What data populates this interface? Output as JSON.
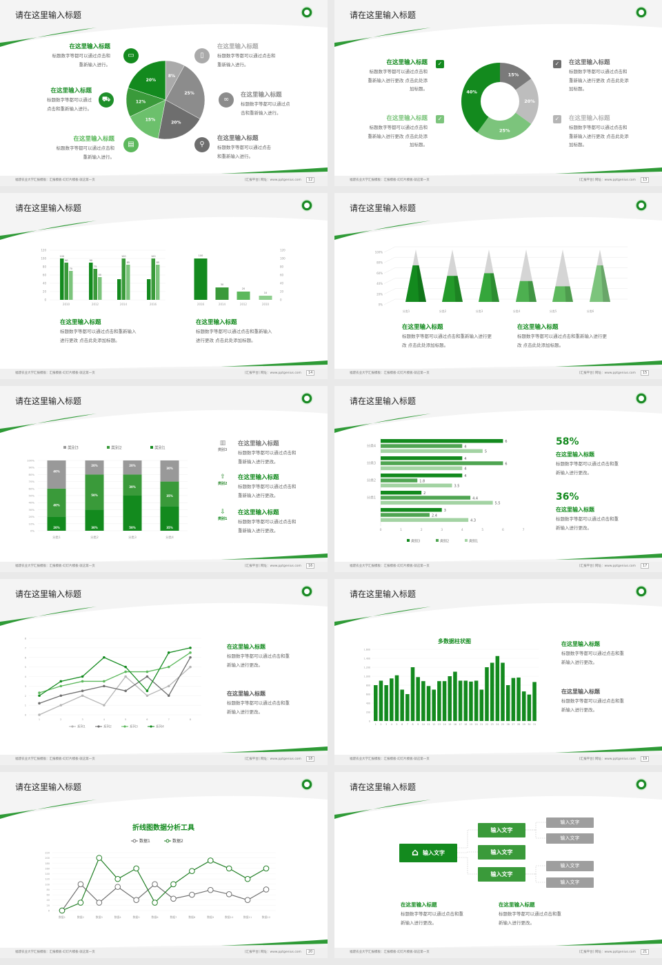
{
  "common": {
    "slide_title": "请在这里输入标题",
    "item_title": "在这里输入标题",
    "footer_left": "福建农业大学汇报模板：汇报模板-幻灯片模板-就这第一页",
    "footer_right": "[汇报平台]  网址：www.pptgenius.com",
    "colors": {
      "dark_green": "#138a1e",
      "green": "#3a9a3a",
      "light_green": "#6cc06c",
      "pale_green": "#9ad39a",
      "gray": "#8c8c8c",
      "dark_gray": "#6e6e6e",
      "light_gray": "#bdbdbd"
    }
  },
  "slides": [
    {
      "page": "12",
      "items": [
        {
          "side": "left",
          "color": "#138a1e",
          "icon": "monitor-icon",
          "title": "在这里输入标题",
          "desc": [
            "标题数字等都可以通过点击和",
            "重新输入进行。"
          ]
        },
        {
          "side": "left",
          "color": "#1e8f2a",
          "icon": "car-icon",
          "title": "在这里输入标题",
          "desc": [
            "标题数字等都可以通过",
            "点击和重新输入进行。"
          ]
        },
        {
          "side": "left",
          "color": "#5cb85c",
          "icon": "book-icon",
          "title": "在这里输入标题",
          "desc": [
            "标题数字等都可以通过点击和",
            "重新输入进行。"
          ]
        },
        {
          "side": "right",
          "color": "#aaaaaa",
          "icon": "phone-icon",
          "title": "在这里输入标题",
          "desc": [
            "标题数字等都可以通过点击和",
            "重新输入进行。"
          ]
        },
        {
          "side": "right",
          "color": "#8c8c8c",
          "icon": "binoculars-icon",
          "title": "在这里输入标题",
          "desc": [
            "标题数字等都可以通过点",
            "击和重新输入进行。"
          ]
        },
        {
          "side": "right",
          "color": "#6e6e6e",
          "icon": "bicycle-icon",
          "title": "在这里输入标题",
          "desc": [
            "标题数字等都可以通过点击",
            "和重新输入进行。"
          ]
        }
      ]
    },
    {
      "page": "13",
      "items": [
        {
          "side": "left",
          "color": "#138a1e",
          "icon": "checkbox-icon",
          "title": "在这里输入标题",
          "desc": [
            "标题数字等都可以通过点击和",
            "重新输入进行更改 点击此处添",
            "加标题。"
          ]
        },
        {
          "side": "left",
          "color": "#7cc47c",
          "icon": "checkbox-icon",
          "title": "在这里输入标题",
          "desc": [
            "标题数字等都可以通过点击和",
            "重新输入进行更改 点击此处添",
            "加标题。"
          ]
        },
        {
          "side": "right",
          "color": "#6e6e6e",
          "icon": "checkbox-icon",
          "title": "在这里输入标题",
          "desc": [
            "标题数字等都可以通过点击和",
            "重新输入进行更改 点击此处添",
            "加标题。"
          ]
        },
        {
          "side": "right",
          "color": "#b5b5b5",
          "icon": "checkbox-icon",
          "title": "在这里输入标题",
          "desc": [
            "标题数字等都可以通过点击和",
            "重新输入进行更改 点击此处添",
            "加标题。"
          ]
        }
      ]
    },
    {
      "page": "14",
      "items": [
        {
          "title": "在这里输入标题",
          "desc": [
            "标题数字等都可以通过点击和重新输入",
            "进行更改 点击此处添加标题。"
          ]
        },
        {
          "title": "在这里输入标题",
          "desc": [
            "标题数字等都可以通过点击和重新输入",
            "进行更改 点击此处添加标题。"
          ]
        }
      ]
    },
    {
      "page": "15",
      "items": [
        {
          "title": "在这里输入标题",
          "desc": [
            "标题数字等都可以通过点击和重新输入进行更",
            "改 点击此处添加标题。"
          ]
        },
        {
          "title": "在这里输入标题",
          "desc": [
            "标题数字等都可以通过点击和重新输入进行更",
            "改 点击此处添加标题。"
          ]
        }
      ]
    },
    {
      "page": "16",
      "items": [
        {
          "label": "类别3",
          "color": "#8c8c8c",
          "icon": "bar-chart-icon",
          "title": "在这里输入标题",
          "desc": [
            "标题数字等都可以通过点击和",
            "重新输入进行更改。"
          ]
        },
        {
          "label": "类别2",
          "color": "#2e8b30",
          "icon": "upload-icon",
          "title": "在这里输入标题",
          "desc": [
            "标题数字等都可以通过点击和",
            "重新输入进行更改。"
          ]
        },
        {
          "label": "类别1",
          "color": "#138a1e",
          "icon": "download-icon",
          "title": "在这里输入标题",
          "desc": [
            "标题数字等都可以通过点击和",
            "重新输入进行更改。"
          ]
        }
      ]
    },
    {
      "page": "17",
      "items": [
        {
          "stat": "58%",
          "title": "在这里输入标题",
          "desc": [
            "标题数字等都可以通过点击和重",
            "新输入进行更改。"
          ]
        },
        {
          "stat": "36%",
          "title": "在这里输入标题",
          "desc": [
            "标题数字等都可以通过点击和重",
            "新输入进行更改。"
          ]
        }
      ]
    },
    {
      "page": "18",
      "items": [
        {
          "color": "#138a1e",
          "title": "在这里输入标题",
          "desc": [
            "标题数字等都可以通过点击和重",
            "新输入进行更改。"
          ]
        },
        {
          "color": "#555555",
          "title": "在这里输入标题",
          "desc": [
            "标题数字等都可以通过点击和重",
            "新输入进行更改。"
          ]
        }
      ]
    },
    {
      "page": "19",
      "items": [
        {
          "color": "#138a1e",
          "title": "在这里输入标题",
          "desc": [
            "标题数字等都可以通过点击和重",
            "新输入进行更改。"
          ]
        },
        {
          "color": "#555555",
          "title": "在这里输入标题",
          "desc": [
            "标题数字等都可以通过点击和重",
            "新输入进行更改。"
          ]
        }
      ]
    },
    {
      "page": "20",
      "items": []
    },
    {
      "page": "21",
      "org": {
        "root": "输入文字",
        "mid": [
          "输入文字",
          "输入文字",
          "输入文字"
        ],
        "leaves": [
          "输入文字",
          "输入文字",
          "输入文字",
          "输入文字"
        ]
      },
      "items": [
        {
          "title": "在这里输入标题",
          "desc": [
            "标题数字等都可以通过点击和重",
            "新输入进行更改。"
          ]
        },
        {
          "title": "在这里输入标题",
          "desc": [
            "标题数字等都可以通过点击和重",
            "新输入进行更改。"
          ]
        }
      ]
    }
  ],
  "chart_data": [
    {
      "slide": 0,
      "type": "pie",
      "labels": [
        "8%",
        "25%",
        "20%",
        "15%",
        "12%",
        "20%"
      ],
      "values": [
        8,
        25,
        20,
        15,
        12,
        20
      ],
      "colors": [
        "#aaaaaa",
        "#8c8c8c",
        "#6e6e6e",
        "#6cc06c",
        "#3a9a3a",
        "#138a1e"
      ]
    },
    {
      "slide": 1,
      "type": "pie",
      "donut": true,
      "labels": [
        "15%",
        "20%",
        "25%",
        "40%"
      ],
      "values": [
        15,
        20,
        25,
        40
      ],
      "colors": [
        "#7a7a7a",
        "#bdbdbd",
        "#7cc47c",
        "#138a1e"
      ]
    },
    {
      "slide": 2,
      "type": "bar",
      "categories": [
        "2010",
        "2012",
        "2014",
        "2016"
      ],
      "ylim": [
        0,
        120
      ],
      "yticks": [
        "0",
        "20",
        "40",
        "60",
        "80",
        "100",
        "120"
      ],
      "series": [
        {
          "values": [
            100,
            90,
            50,
            50
          ],
          "labels": [
            "100",
            "90",
            "",
            ""
          ],
          "color": "#138a1e"
        },
        {
          "values": [
            90,
            75,
            100,
            100
          ],
          "labels": [
            "90",
            "75",
            "100",
            "100"
          ],
          "color": "#3a9a3a"
        },
        {
          "values": [
            70,
            55,
            85,
            85
          ],
          "labels": [
            "70",
            "55",
            "85",
            "85"
          ],
          "color": "#7cc47c"
        }
      ]
    },
    {
      "slide": 2,
      "type": "bar",
      "categories": [
        "2016",
        "2014",
        "2012",
        "2010"
      ],
      "values": [
        100,
        30,
        20,
        10
      ],
      "labels": [
        "100",
        "30",
        "20",
        "10"
      ],
      "ylim": [
        0,
        120
      ],
      "yticks": [
        "0",
        "20",
        "40",
        "60",
        "80",
        "100",
        "120"
      ],
      "colors": [
        "#138a1e",
        "#3a9a3a",
        "#5cb85c",
        "#8fcf8f"
      ]
    },
    {
      "slide": 3,
      "type": "bar",
      "style": "3d-cone",
      "categories": [
        "分类1",
        "分类2",
        "分类3",
        "分类4",
        "分类5",
        "分类6"
      ],
      "values": [
        75,
        55,
        60,
        45,
        35,
        75
      ],
      "ylim": [
        0,
        100
      ],
      "yticks": [
        "0%",
        "20%",
        "40%",
        "60%",
        "80%",
        "100%"
      ],
      "colors": [
        "#138a1e",
        "#239a2a",
        "#35a63b",
        "#4db050",
        "#5cb85c",
        "#7cc47c"
      ]
    },
    {
      "slide": 4,
      "type": "bar",
      "stacked": "percent",
      "categories": [
        "分类1",
        "分类2",
        "分类3",
        "分类4"
      ],
      "yticks": [
        "0%",
        "10%",
        "20%",
        "30%",
        "40%",
        "50%",
        "60%",
        "70%",
        "80%",
        "90%",
        "100%"
      ],
      "legend": "top",
      "series": [
        {
          "name": "类别1",
          "values": [
            20,
            30,
            50,
            35
          ],
          "labels": [
            "20%",
            "30%",
            "50%",
            "35%"
          ],
          "color": "#138a1e"
        },
        {
          "name": "类别2",
          "values": [
            40,
            50,
            30,
            35
          ],
          "labels": [
            "40%",
            "50%",
            "30%",
            "35%"
          ],
          "color": "#3a9a3a"
        },
        {
          "name": "类别3",
          "values": [
            40,
            20,
            20,
            30
          ],
          "labels": [
            "40%",
            "20%",
            "20%",
            "30%"
          ],
          "color": "#999999"
        }
      ],
      "legend_order": [
        "类别3",
        "类别2",
        "类别1"
      ]
    },
    {
      "slide": 5,
      "type": "bar",
      "orientation": "horizontal",
      "categories": [
        "分类4",
        "分类3",
        "分类2",
        "分类1",
        ""
      ],
      "xlim": [
        0,
        7
      ],
      "xticks": [
        "0",
        "1",
        "2",
        "3",
        "4",
        "5",
        "6",
        "7"
      ],
      "legend": "bottom",
      "series": [
        {
          "name": "类别3",
          "values": [
            6,
            4,
            4,
            2,
            3
          ],
          "color": "#138a1e"
        },
        {
          "name": "类别2",
          "values": [
            4,
            6,
            1.8,
            4.4,
            2.4
          ],
          "color": "#4fa552"
        },
        {
          "name": "类别1",
          "values": [
            5,
            4,
            3.5,
            5.5,
            4.3
          ],
          "color": "#a3d3a3"
        }
      ]
    },
    {
      "slide": 6,
      "type": "line",
      "x": [
        "1",
        "2",
        "3",
        "4",
        "5",
        "6",
        "7",
        "8"
      ],
      "ylim": [
        0,
        8
      ],
      "yticks": [
        "0",
        "1",
        "2",
        "3",
        "4",
        "5",
        "6",
        "7",
        "8"
      ],
      "legend": "bottom",
      "series": [
        {
          "name": "系列1",
          "values": [
            0,
            1,
            2,
            1,
            4,
            2,
            3,
            5
          ],
          "color": "#b5b5b5"
        },
        {
          "name": "系列2",
          "values": [
            1.2,
            2,
            2.5,
            3,
            2.5,
            4,
            2,
            6
          ],
          "color": "#6e6e6e"
        },
        {
          "name": "系列3",
          "values": [
            2.3,
            3,
            3.5,
            3.5,
            4.5,
            4.5,
            5,
            6.5
          ],
          "color": "#5cb85c"
        },
        {
          "name": "系列4",
          "values": [
            2,
            3.5,
            4,
            6,
            5,
            2.5,
            6.5,
            7
          ],
          "color": "#138a1e"
        }
      ]
    },
    {
      "slide": 7,
      "type": "bar",
      "title": "多数据柱状图",
      "categories": [
        "1",
        "2",
        "3",
        "4",
        "5",
        "6",
        "7",
        "8",
        "9",
        "10",
        "11",
        "12",
        "13",
        "14",
        "15",
        "16",
        "17",
        "18",
        "19",
        "20",
        "21",
        "22",
        "23",
        "24",
        "25",
        "26",
        "27",
        "28",
        "29",
        "30",
        "31"
      ],
      "values": [
        800,
        900,
        800,
        950,
        1020,
        700,
        600,
        1200,
        980,
        890,
        780,
        700,
        890,
        890,
        1000,
        1100,
        900,
        900,
        880,
        900,
        700,
        1200,
        1300,
        1450,
        1300,
        800,
        960,
        970,
        660,
        590,
        870
      ],
      "ylim": [
        0,
        1600
      ],
      "yticks": [
        "0",
        "200",
        "400",
        "600",
        "800",
        "1,000",
        "1,200",
        "1,400",
        "1,600"
      ],
      "color": "#138a1e"
    },
    {
      "slide": 8,
      "type": "line",
      "title": "折线图数据分析工具",
      "x": [
        "数据1",
        "数据2",
        "数据3",
        "数据4",
        "数据5",
        "数据6",
        "数据7",
        "数据8",
        "数据9",
        "数据10",
        "数据11",
        "数据12"
      ],
      "ylim": [
        0,
        220
      ],
      "yticks": [
        "0",
        "20",
        "40",
        "60",
        "80",
        "100",
        "120",
        "140",
        "160",
        "180",
        "200",
        "220"
      ],
      "legend": "top",
      "series": [
        {
          "name": "数据1",
          "values": [
            0,
            100,
            30,
            90,
            40,
            100,
            45,
            60,
            78,
            62,
            40,
            80
          ],
          "color": "#6e6e6e"
        },
        {
          "name": "数据2",
          "values": [
            0,
            30,
            200,
            120,
            160,
            30,
            100,
            150,
            190,
            160,
            120,
            160
          ],
          "color": "#1e7d22"
        }
      ]
    }
  ]
}
